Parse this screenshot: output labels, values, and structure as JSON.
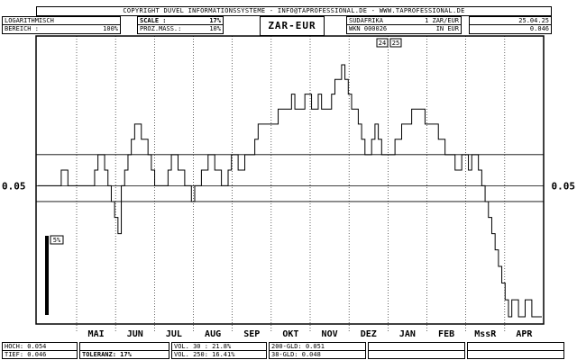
{
  "header": {
    "copyright": "COPYRIGHT DUVEL INFORMATIONSSYSTEME - INFO@TAPROFESSIONAL.DE - WWW.TAPROFESSIONAL.DE",
    "scale_mode": "LOGARITHMISCH",
    "range_label": "BEREICH :",
    "range_value": "100%",
    "scale_label": "SCALE :",
    "scale_value": "17%",
    "proz_label": "PROZ.MASS.:",
    "proz_value": "10%",
    "title": "ZAR-EUR",
    "instrument_name": "SUDAFRIKA",
    "instrument_pair": "1 ZAR/EUR",
    "wkn_label": "WKN 000026",
    "currency_label": "IN EUR",
    "date": "25.04.25",
    "last_value": "0.046",
    "marker_1": "24",
    "marker_2": "25",
    "small_label": "5%"
  },
  "footer": {
    "hoch_label": "HOCH:",
    "hoch_value": "0.054",
    "tief_label": "TIEF:",
    "tief_value": "0.046",
    "toleranz_label": "TOLERANZ:",
    "toleranz_value": "17%",
    "vol30_label": "VOL. 30 :",
    "vol30_value": "21.8%",
    "vol250_label": "VOL. 250:",
    "vol250_value": "16.41%",
    "gld200_label": "200-GLD:",
    "gld200_value": "0.051",
    "gld38_label": "38-GLD:",
    "gld38_value": "0.048"
  },
  "chart_data": {
    "type": "line",
    "scale": "log",
    "x_ticks": [
      "MAI",
      "JUN",
      "JUL",
      "AUG",
      "SEP",
      "OKT",
      "NOV",
      "DEZ",
      "JAN",
      "FEB",
      "MssR",
      "APR"
    ],
    "y_tick_labels": [
      "0.05"
    ],
    "grid": true,
    "ylim": [
      0.046,
      0.054
    ],
    "series": [
      {
        "values": [
          0.05,
          0.05,
          0.05,
          0.05,
          0.05,
          0.05,
          0.05,
          0.0505,
          0.0505,
          0.05,
          0.05,
          0.05,
          0.05,
          0.05,
          0.05,
          0.05,
          0.05,
          0.0505,
          0.051,
          0.051,
          0.0505,
          0.05,
          0.0495,
          0.049,
          0.0485,
          0.05,
          0.0505,
          0.051,
          0.0515,
          0.052,
          0.052,
          0.0515,
          0.0515,
          0.051,
          0.0505,
          0.05,
          0.05,
          0.05,
          0.05,
          0.0505,
          0.051,
          0.051,
          0.0505,
          0.0505,
          0.05,
          0.05,
          0.0495,
          0.05,
          0.05,
          0.0505,
          0.0505,
          0.051,
          0.051,
          0.0505,
          0.0505,
          0.05,
          0.05,
          0.0505,
          0.051,
          0.051,
          0.0505,
          0.0505,
          0.051,
          0.051,
          0.051,
          0.0515,
          0.052,
          0.052,
          0.052,
          0.052,
          0.052,
          0.052,
          0.0525,
          0.0525,
          0.0525,
          0.0525,
          0.053,
          0.0525,
          0.0525,
          0.0525,
          0.053,
          0.053,
          0.0525,
          0.0525,
          0.053,
          0.0525,
          0.0525,
          0.0525,
          0.053,
          0.0535,
          0.0535,
          0.054,
          0.0535,
          0.053,
          0.0525,
          0.0525,
          0.052,
          0.0515,
          0.051,
          0.051,
          0.0515,
          0.052,
          0.0515,
          0.051,
          0.051,
          0.051,
          0.051,
          0.0515,
          0.0515,
          0.052,
          0.052,
          0.052,
          0.0525,
          0.0525,
          0.0525,
          0.0525,
          0.052,
          0.052,
          0.052,
          0.052,
          0.0515,
          0.0515,
          0.051,
          0.051,
          0.051,
          0.0505,
          0.0505,
          0.051,
          0.051,
          0.0505,
          0.051,
          0.051,
          0.0505,
          0.05,
          0.0495,
          0.049,
          0.0485,
          0.048,
          0.0475,
          0.047,
          0.0465,
          0.046,
          0.0465,
          0.0465,
          0.046,
          0.046,
          0.0465,
          0.0465,
          0.046,
          0.046,
          0.046
        ]
      }
    ],
    "reference_lines": [
      0.05,
      0.051,
      0.0495
    ]
  }
}
